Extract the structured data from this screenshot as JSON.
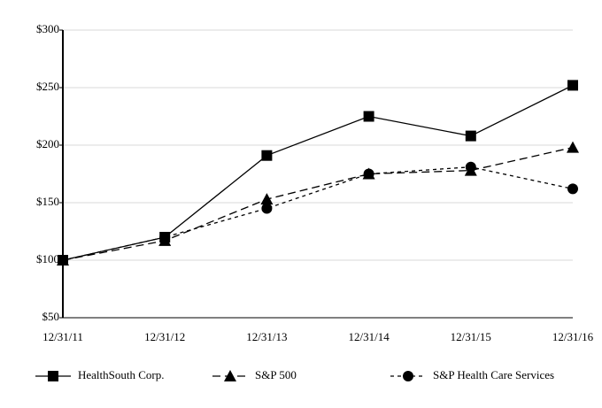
{
  "chart_data": {
    "type": "line",
    "categories": [
      "12/31/11",
      "12/31/12",
      "12/31/13",
      "12/31/14",
      "12/31/15",
      "12/31/16"
    ],
    "series": [
      {
        "name": "HealthSouth Corp.",
        "color": "#000000",
        "marker": "square",
        "line_style": "solid",
        "values": [
          100,
          120,
          191,
          225,
          208,
          252
        ]
      },
      {
        "name": "S&P 500",
        "color": "#000000",
        "marker": "triangle",
        "line_style": "dashed",
        "values": [
          100,
          117,
          153,
          175,
          178,
          198
        ]
      },
      {
        "name": "S&P Health Care Services",
        "color": "#000000",
        "marker": "circle",
        "line_style": "dotted",
        "values": [
          100,
          120,
          145,
          175,
          181,
          162
        ]
      }
    ],
    "ylim": [
      50,
      300
    ],
    "yticks": [
      {
        "value": 50,
        "label": "$50"
      },
      {
        "value": 100,
        "label": "$100"
      },
      {
        "value": 150,
        "label": "$150"
      },
      {
        "value": 200,
        "label": "$200"
      },
      {
        "value": 250,
        "label": "$250"
      },
      {
        "value": 300,
        "label": "$300"
      }
    ],
    "grid": true,
    "legend": "bottom"
  }
}
